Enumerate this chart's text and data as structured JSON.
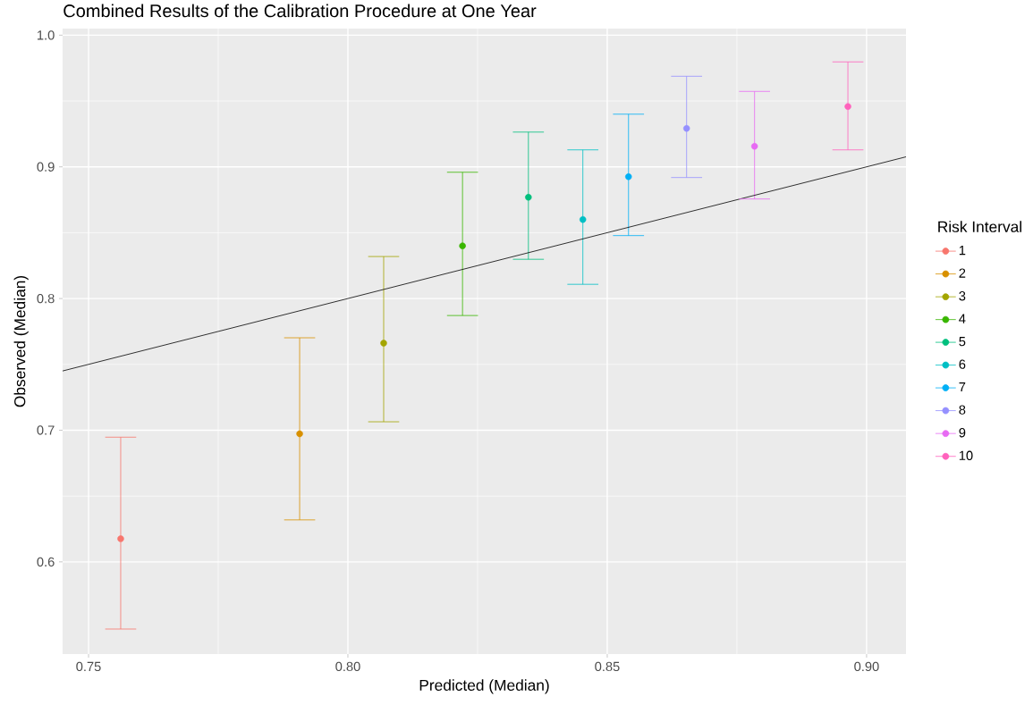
{
  "chart_data": {
    "type": "scatter",
    "title": "Combined Results of the Calibration Procedure at One Year",
    "xlabel": "Predicted (Median)",
    "ylabel": "Observed (Median)",
    "legend_title": "Risk Interval",
    "legend": "right",
    "grid": true,
    "xlim": [
      0.745,
      0.9076
    ],
    "ylim": [
      0.53,
      1.005
    ],
    "xticks": [
      0.75,
      {
        "value": 0.8,
        "label": "0.80"
      },
      0.85,
      {
        "value": 0.9,
        "label": "0.90"
      }
    ],
    "yticks": [
      0.6,
      0.7,
      0.8,
      0.9,
      {
        "value": 1.0,
        "label": "1.0"
      }
    ],
    "series": [
      {
        "name": "1",
        "marker": "circle",
        "color": "#F8766D",
        "x": [
          0.7562
        ],
        "values": [
          0.6176
        ],
        "errors": [
          [
            0.549,
            0.6947
          ]
        ]
      },
      {
        "name": "2",
        "marker": "circle",
        "color": "#D89000",
        "x": [
          0.7907
        ],
        "values": [
          0.6973
        ],
        "errors": [
          [
            0.6319,
            0.7702
          ]
        ]
      },
      {
        "name": "3",
        "marker": "circle",
        "color": "#A3A500",
        "x": [
          0.8069
        ],
        "values": [
          0.7661
        ],
        "errors": [
          [
            0.7064,
            0.8319
          ]
        ]
      },
      {
        "name": "4",
        "marker": "circle",
        "color": "#39B600",
        "x": [
          0.8221
        ],
        "values": [
          0.84
        ],
        "errors": [
          [
            0.7871,
            0.8959
          ]
        ]
      },
      {
        "name": "5",
        "marker": "circle",
        "color": "#00BF7D",
        "x": [
          0.8348
        ],
        "values": [
          0.8769
        ],
        "errors": [
          [
            0.8298,
            0.9264
          ]
        ]
      },
      {
        "name": "6",
        "marker": "circle",
        "color": "#00BFC4",
        "x": [
          0.8453
        ],
        "values": [
          0.86
        ],
        "errors": [
          [
            0.8108,
            0.9129
          ]
        ]
      },
      {
        "name": "7",
        "marker": "circle",
        "color": "#00B0F6",
        "x": [
          0.8541
        ],
        "values": [
          0.8925
        ],
        "errors": [
          [
            0.8478,
            0.94
          ]
        ]
      },
      {
        "name": "8",
        "marker": "circle",
        "color": "#9590FF",
        "x": [
          0.8653
        ],
        "values": [
          0.9292
        ],
        "errors": [
          [
            0.8919,
            0.9688
          ]
        ]
      },
      {
        "name": "9",
        "marker": "circle",
        "color": "#E76BF3",
        "x": [
          0.8784
        ],
        "values": [
          0.9156
        ],
        "errors": [
          [
            0.8756,
            0.9573
          ]
        ]
      },
      {
        "name": "10",
        "marker": "circle",
        "color": "#FF62BC",
        "x": [
          0.8964
        ],
        "values": [
          0.9458
        ],
        "errors": [
          [
            0.9129,
            0.9797
          ]
        ]
      },
      {
        "type": "line",
        "marker": "none",
        "color": "#000000",
        "x": [
          0.745,
          0.9076
        ],
        "values": [
          0.745,
          0.9076
        ]
      }
    ]
  }
}
